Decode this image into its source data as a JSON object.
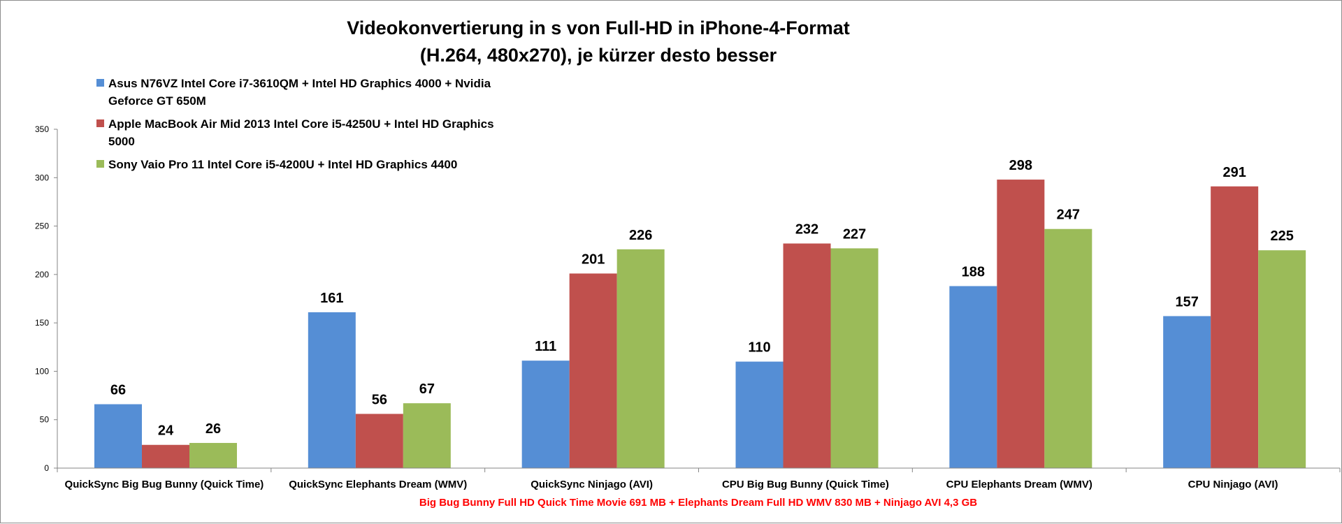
{
  "chart_data": {
    "type": "bar",
    "title_lines": [
      "Videokonvertierung in s von Full-HD in iPhone-4-Format",
      "(H.264, 480x270), je kürzer desto besser"
    ],
    "xlabel": "Big Bug Bunny Full HD Quick Time Movie 691 MB + Elephants Dream Full HD WMV 830 MB + Ninjago AVI 4,3 GB",
    "xlabel_color": "#ff0000",
    "ylabel": "",
    "ylim": [
      0,
      350
    ],
    "yticks": [
      0,
      50,
      100,
      150,
      200,
      250,
      300,
      350
    ],
    "grid": false,
    "legend_position": "top-left",
    "categories": [
      "QuickSync Big Bug Bunny (Quick Time)",
      "QuickSync Elephants Dream (WMV)",
      "QuickSync Ninjago (AVI)",
      "CPU Big Bug Bunny (Quick Time)",
      "CPU Elephants Dream (WMV)",
      "CPU Ninjago (AVI)"
    ],
    "series": [
      {
        "name_lines": [
          "Asus N76VZ Intel Core i7-3610QM + Intel HD Graphics 4000 + Nvidia",
          "Geforce GT 650M"
        ],
        "color": "#558ed5",
        "values": [
          66,
          161,
          111,
          110,
          188,
          157
        ]
      },
      {
        "name_lines": [
          "Apple MacBook Air Mid 2013 Intel Core i5-4250U + Intel HD Graphics",
          "5000"
        ],
        "color": "#c0504d",
        "values": [
          24,
          56,
          201,
          232,
          298,
          291
        ]
      },
      {
        "name_lines": [
          "Sony Vaio Pro 11 Intel Core i5-4200U + Intel HD Graphics 4400"
        ],
        "color": "#9bbb59",
        "values": [
          26,
          67,
          226,
          227,
          247,
          225
        ]
      }
    ]
  }
}
